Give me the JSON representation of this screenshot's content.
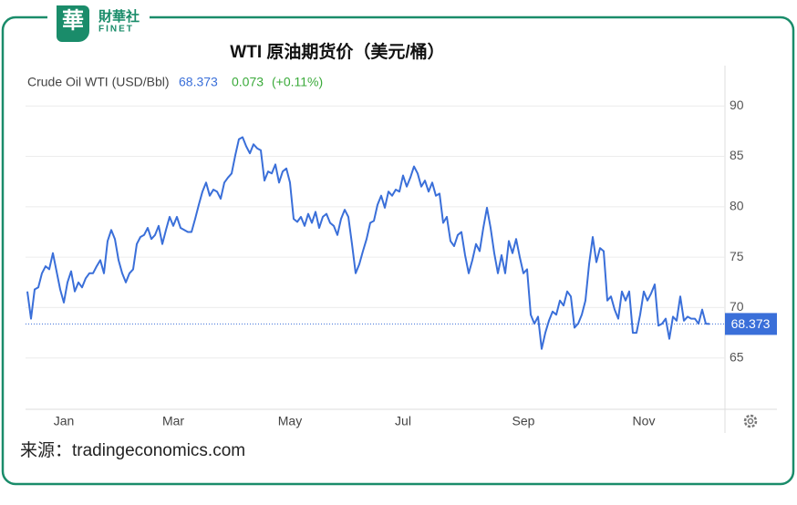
{
  "logo": {
    "mark": "華",
    "name": "財華社",
    "name_en": "FINET"
  },
  "source": "来源：tradingeconomics.com",
  "chart_data": {
    "type": "line",
    "title": "WTI 原油期货价（美元/桶）",
    "legend": {
      "name": "Crude Oil WTI (USD/Bbl)",
      "last": 68.373,
      "change": 0.073,
      "change_pct_label": "(+0.11%)"
    },
    "color": "#3a6fd9",
    "grid": true,
    "ylim": [
      60,
      94
    ],
    "yticks": [
      65,
      70,
      75,
      80,
      85,
      90
    ],
    "categories": [
      null,
      null,
      null,
      null,
      null,
      null,
      null,
      null,
      null,
      null,
      "Jan",
      null,
      null,
      null,
      null,
      null,
      null,
      null,
      null,
      null,
      null,
      null,
      null,
      null,
      null,
      null,
      null,
      null,
      null,
      null,
      null,
      null,
      null,
      null,
      null,
      null,
      null,
      null,
      null,
      null,
      "Mar",
      null,
      null,
      null,
      null,
      null,
      null,
      null,
      null,
      null,
      null,
      null,
      null,
      null,
      null,
      null,
      null,
      null,
      null,
      null,
      null,
      null,
      null,
      null,
      null,
      null,
      null,
      null,
      null,
      null,
      null,
      null,
      "May",
      null,
      null,
      null,
      null,
      null,
      null,
      null,
      null,
      null,
      null,
      null,
      null,
      null,
      null,
      null,
      null,
      null,
      null,
      null,
      null,
      null,
      null,
      null,
      null,
      null,
      null,
      null,
      null,
      null,
      null,
      "Jul",
      null,
      null,
      null,
      null,
      null,
      null,
      null,
      null,
      null,
      null,
      null,
      null,
      null,
      null,
      null,
      null,
      null,
      null,
      null,
      null,
      null,
      null,
      null,
      null,
      null,
      null,
      null,
      null,
      null,
      null,
      null,
      null,
      "Sep",
      null,
      null,
      null,
      null,
      null,
      null,
      null,
      null,
      null,
      null,
      null,
      null,
      null,
      null,
      null,
      null,
      null,
      null,
      null,
      null,
      null,
      null,
      null,
      null,
      null,
      null,
      null,
      null,
      null,
      null,
      null,
      null,
      "Nov",
      null,
      null,
      null,
      null,
      null,
      null,
      null,
      null,
      null,
      null,
      null,
      null,
      null,
      null,
      null,
      null,
      null,
      null
    ],
    "values": [
      71.6,
      68.9,
      71.8,
      72.0,
      73.4,
      74.1,
      73.8,
      75.4,
      73.6,
      71.8,
      70.5,
      72.5,
      73.6,
      71.6,
      72.5,
      72.0,
      72.9,
      73.4,
      73.4,
      74.1,
      74.7,
      73.4,
      76.6,
      77.7,
      76.8,
      74.7,
      73.4,
      72.5,
      73.4,
      73.8,
      76.3,
      77.0,
      77.2,
      77.9,
      76.8,
      77.2,
      78.1,
      76.3,
      77.7,
      79.0,
      78.1,
      79.0,
      77.9,
      77.7,
      77.5,
      77.5,
      78.8,
      80.2,
      81.5,
      82.4,
      81.1,
      81.7,
      81.5,
      80.8,
      82.4,
      82.9,
      83.3,
      85.1,
      86.7,
      86.9,
      86.0,
      85.3,
      86.2,
      85.8,
      85.6,
      82.6,
      83.5,
      83.3,
      84.2,
      82.4,
      83.5,
      83.8,
      82.4,
      78.8,
      78.5,
      79.0,
      78.1,
      79.3,
      78.4,
      79.5,
      77.9,
      79.0,
      79.3,
      78.4,
      78.1,
      77.2,
      78.8,
      79.7,
      79.0,
      76.3,
      73.4,
      74.3,
      75.6,
      76.8,
      78.4,
      78.6,
      80.2,
      81.1,
      79.9,
      81.5,
      81.1,
      81.7,
      81.5,
      83.1,
      82.0,
      82.9,
      84.0,
      83.3,
      82.0,
      82.6,
      81.5,
      82.4,
      81.1,
      81.3,
      78.4,
      79.0,
      76.6,
      76.1,
      77.2,
      77.5,
      75.2,
      73.4,
      74.7,
      76.3,
      75.6,
      77.9,
      79.9,
      77.9,
      75.4,
      73.4,
      75.2,
      73.4,
      76.6,
      75.4,
      76.8,
      75.0,
      73.4,
      73.8,
      69.3,
      68.4,
      69.1,
      65.9,
      67.5,
      68.7,
      69.6,
      69.3,
      70.7,
      70.2,
      71.6,
      71.1,
      68.0,
      68.4,
      69.3,
      70.7,
      74.3,
      77.0,
      74.5,
      75.9,
      75.6,
      70.7,
      71.1,
      69.8,
      68.9,
      71.6,
      70.7,
      71.6,
      67.5,
      67.5,
      69.3,
      71.6,
      70.7,
      71.4,
      72.3,
      68.2,
      68.4,
      68.9,
      66.9,
      69.1,
      68.7,
      71.1,
      68.7,
      69.1,
      68.9,
      68.9,
      68.4,
      69.8,
      68.4,
      68.373
    ]
  }
}
